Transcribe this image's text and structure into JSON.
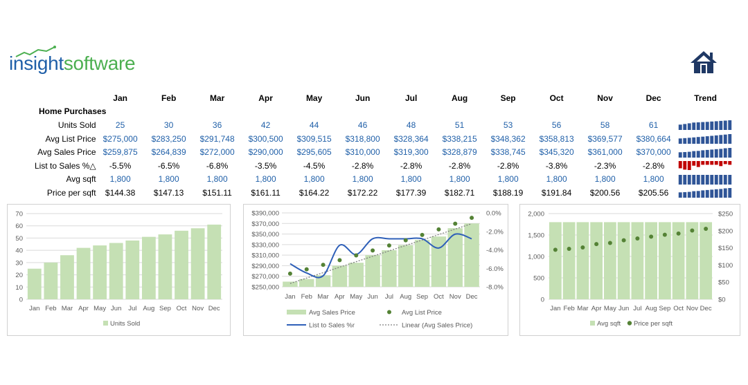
{
  "brand": {
    "insight": "insight",
    "software": "software"
  },
  "icons": {
    "logo_swoosh": "swoosh-line-icon",
    "home": "house-icon"
  },
  "colors": {
    "brand_blue": "#1f5fa8",
    "brand_green": "#4caf50",
    "bar_green": "#c5e0b4",
    "dot_green": "#548235",
    "line_blue": "#2e5fb8",
    "spark_blue": "#2f5597",
    "spark_red": "#c00000",
    "house_navy": "#1f3864"
  },
  "table": {
    "months": [
      "Jan",
      "Feb",
      "Mar",
      "Apr",
      "May",
      "Jun",
      "Jul",
      "Aug",
      "Sep",
      "Oct",
      "Nov",
      "Dec"
    ],
    "trend_header": "Trend",
    "section_label": "Home Purchases",
    "rows": [
      {
        "label": "Units Sold",
        "style": "blue",
        "values": [
          "25",
          "30",
          "36",
          "42",
          "44",
          "46",
          "48",
          "51",
          "53",
          "56",
          "58",
          "61"
        ],
        "trend": [
          25,
          30,
          36,
          42,
          44,
          46,
          48,
          51,
          53,
          56,
          58,
          61
        ]
      },
      {
        "label": "Avg List Price",
        "style": "blue",
        "values": [
          "$275,000",
          "$283,250",
          "$291,748",
          "$300,500",
          "$309,515",
          "$318,800",
          "$328,364",
          "$338,215",
          "$348,362",
          "$358,813",
          "$369,577",
          "$380,664"
        ],
        "trend": [
          275000,
          283250,
          291748,
          300500,
          309515,
          318800,
          328364,
          338215,
          348362,
          358813,
          369577,
          380664
        ]
      },
      {
        "label": "Avg Sales Price",
        "style": "blue",
        "values": [
          "$259,875",
          "$264,839",
          "$272,000",
          "$290,000",
          "$295,605",
          "$310,000",
          "$319,300",
          "$328,879",
          "$338,745",
          "$345,320",
          "$361,000",
          "$370,000"
        ],
        "trend": [
          259875,
          264839,
          272000,
          290000,
          295605,
          310000,
          319300,
          328879,
          338745,
          345320,
          361000,
          370000
        ]
      },
      {
        "label": "List to Sales %△",
        "style": "black",
        "values": [
          "-5.5%",
          "-6.5%",
          "-6.8%",
          "-3.5%",
          "-4.5%",
          "-2.8%",
          "-2.8%",
          "-2.8%",
          "-2.8%",
          "-3.8%",
          "-2.3%",
          "-2.8%"
        ],
        "trend": [
          -5.5,
          -6.5,
          -6.8,
          -3.5,
          -4.5,
          -2.8,
          -2.8,
          -2.8,
          -2.8,
          -3.8,
          -2.3,
          -2.8
        ]
      },
      {
        "label": "Avg sqft",
        "style": "blue",
        "values": [
          "1,800",
          "1,800",
          "1,800",
          "1,800",
          "1,800",
          "1,800",
          "1,800",
          "1,800",
          "1,800",
          "1,800",
          "1,800",
          "1,800"
        ],
        "trend": [
          1800,
          1800,
          1800,
          1800,
          1800,
          1800,
          1800,
          1800,
          1800,
          1800,
          1800,
          1800
        ]
      },
      {
        "label": "Price per sqft",
        "style": "black",
        "values": [
          "$144.38",
          "$147.13",
          "$151.11",
          "$161.11",
          "$164.22",
          "$172.22",
          "$177.39",
          "$182.71",
          "$188.19",
          "$191.84",
          "$200.56",
          "$205.56"
        ],
        "trend": [
          144.38,
          147.13,
          151.11,
          161.11,
          164.22,
          172.22,
          177.39,
          182.71,
          188.19,
          191.84,
          200.56,
          205.56
        ]
      }
    ]
  },
  "chart_data": [
    {
      "type": "bar",
      "categories": [
        "Jan",
        "Feb",
        "Mar",
        "Apr",
        "May",
        "Jun",
        "Jul",
        "Aug",
        "Sep",
        "Oct",
        "Nov",
        "Dec"
      ],
      "series": [
        {
          "name": "Units Sold",
          "values": [
            25,
            30,
            36,
            42,
            44,
            46,
            48,
            51,
            53,
            56,
            58,
            61
          ]
        }
      ],
      "ylim": [
        0,
        70
      ],
      "yticks": [
        "0",
        "10",
        "20",
        "30",
        "40",
        "50",
        "60",
        "70"
      ],
      "grid": true,
      "legend": "bottom"
    },
    {
      "type": "bar",
      "categories": [
        "Jan",
        "Feb",
        "Mar",
        "Apr",
        "May",
        "Jun",
        "Jul",
        "Aug",
        "Sep",
        "Oct",
        "Nov",
        "Dec"
      ],
      "series": [
        {
          "name": "Avg Sales Price",
          "type": "bar",
          "axis": "left",
          "values": [
            259875,
            264839,
            272000,
            290000,
            295605,
            310000,
            319300,
            328879,
            338745,
            345320,
            361000,
            370000
          ]
        },
        {
          "name": "Avg List Price",
          "type": "scatter",
          "axis": "left",
          "values": [
            275000,
            283250,
            291748,
            300500,
            309515,
            318800,
            328364,
            338215,
            348362,
            358813,
            369577,
            380664
          ]
        },
        {
          "name": "List to Sales %r",
          "type": "line",
          "axis": "right",
          "values": [
            -5.5,
            -6.5,
            -6.8,
            -3.5,
            -4.5,
            -2.8,
            -2.8,
            -2.8,
            -2.8,
            -3.8,
            -2.3,
            -2.8
          ]
        },
        {
          "name": "Linear (Avg Sales Price)",
          "type": "trendline",
          "axis": "left"
        }
      ],
      "ylim": [
        250000,
        390000
      ],
      "yticks": [
        "$250,000",
        "$270,000",
        "$290,000",
        "$310,000",
        "$330,000",
        "$350,000",
        "$370,000",
        "$390,000"
      ],
      "y2lim": [
        -8,
        0
      ],
      "y2ticks": [
        "-8.0%",
        "-6.0%",
        "-4.0%",
        "-2.0%",
        "0.0%"
      ],
      "grid": true,
      "legend": "bottom"
    },
    {
      "type": "bar",
      "categories": [
        "Jan",
        "Feb",
        "Mar",
        "Apr",
        "May",
        "Jun",
        "Jul",
        "Aug",
        "Sep",
        "Oct",
        "Nov",
        "Dec"
      ],
      "series": [
        {
          "name": "Avg sqft",
          "type": "bar",
          "axis": "left",
          "values": [
            1800,
            1800,
            1800,
            1800,
            1800,
            1800,
            1800,
            1800,
            1800,
            1800,
            1800,
            1800
          ]
        },
        {
          "name": "Price per sqft",
          "type": "scatter",
          "axis": "right",
          "values": [
            144.38,
            147.13,
            151.11,
            161.11,
            164.22,
            172.22,
            177.39,
            182.71,
            188.19,
            191.84,
            200.56,
            205.56
          ]
        }
      ],
      "ylim": [
        0,
        2000
      ],
      "yticks": [
        "0",
        "500",
        "1,000",
        "1,500",
        "2,000"
      ],
      "y2lim": [
        0,
        250
      ],
      "y2ticks": [
        "$0",
        "$50",
        "$100",
        "$150",
        "$200",
        "$250"
      ],
      "grid": true,
      "legend": "bottom"
    }
  ]
}
